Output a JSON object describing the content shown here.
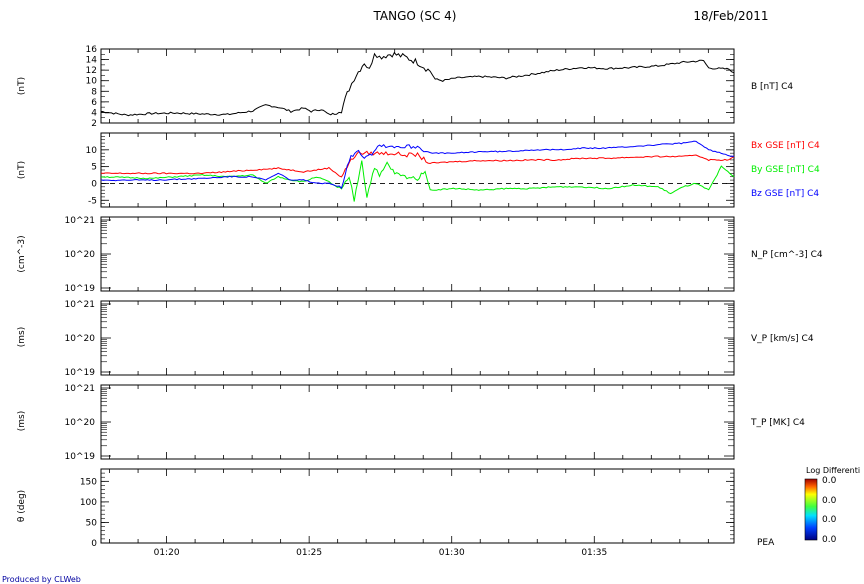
{
  "header": {
    "title": "TANGO (SC 4)",
    "date": "18/Feb/2011"
  },
  "footer": {
    "credit": "Produced by CLWeb"
  },
  "colorbar": {
    "title": "Log Differenti",
    "labels": [
      "0.0",
      "0.0",
      "0.0",
      "0.0"
    ],
    "side_label": "PEA"
  },
  "colors": {
    "bx": "#ff0000",
    "by": "#00ee00",
    "bz": "#0000ff",
    "b": "#000000"
  },
  "chart_data": [
    {
      "type": "line",
      "ylabel": "(nT)",
      "right_label": "B [nT] C4",
      "ylim": [
        2,
        16
      ],
      "yticks": [
        "2",
        "4",
        "6",
        "8",
        "10",
        "12",
        "14",
        "16"
      ],
      "x_ticks": [
        "01:20",
        "01:25",
        "01:30",
        "01:35"
      ],
      "series": [
        {
          "name": "B [nT] C4",
          "color": "#000000",
          "points": [
            [
              0,
              4.2
            ],
            [
              1,
              3.5
            ],
            [
              2,
              3.8
            ],
            [
              3,
              3.9
            ],
            [
              4,
              3.7
            ],
            [
              5,
              3.6
            ],
            [
              6,
              4.3
            ],
            [
              6.5,
              5.4
            ],
            [
              7,
              5.0
            ],
            [
              7.5,
              4.2
            ],
            [
              8,
              4.8
            ],
            [
              8.3,
              4.2
            ],
            [
              8.7,
              4.6
            ],
            [
              9,
              3.6
            ],
            [
              9.3,
              3.8
            ],
            [
              9.5,
              4.5
            ],
            [
              9.8,
              8.5
            ],
            [
              10,
              10.5
            ],
            [
              10.4,
              13.5
            ],
            [
              10.6,
              12
            ],
            [
              10.8,
              15.5
            ],
            [
              11,
              14.5
            ],
            [
              11.5,
              15.1
            ],
            [
              12,
              14.5
            ],
            [
              12.5,
              13.5
            ],
            [
              13,
              11.8
            ],
            [
              13.2,
              10.3
            ],
            [
              13.5,
              10
            ],
            [
              14,
              10.5
            ],
            [
              15,
              10.8
            ],
            [
              16,
              10.5
            ],
            [
              17,
              11.2
            ],
            [
              18,
              12
            ],
            [
              19,
              12.5
            ],
            [
              20,
              12.3
            ],
            [
              21,
              12.5
            ],
            [
              22,
              12.8
            ],
            [
              23,
              13.5
            ],
            [
              23.8,
              13.8
            ],
            [
              24,
              12.4
            ],
            [
              24.8,
              12.2
            ],
            [
              25,
              11.5
            ]
          ]
        }
      ]
    },
    {
      "type": "line",
      "ylabel": "(nT)",
      "ylim": [
        -7,
        15
      ],
      "yticks": [
        "-5",
        "0",
        "5",
        "10"
      ],
      "zero_line": true,
      "series": [
        {
          "name": "Bx GSE [nT] C4",
          "color": "#ff0000",
          "points": [
            [
              0,
              3
            ],
            [
              2,
              3
            ],
            [
              4,
              3
            ],
            [
              6,
              4
            ],
            [
              7,
              4.5
            ],
            [
              8,
              3.5
            ],
            [
              8.5,
              4
            ],
            [
              9,
              4.6
            ],
            [
              9.5,
              2
            ],
            [
              9.8,
              6
            ],
            [
              10.1,
              9
            ],
            [
              10.5,
              9
            ],
            [
              11,
              9
            ],
            [
              11.5,
              9
            ],
            [
              12,
              8.5
            ],
            [
              12.5,
              8.5
            ],
            [
              13,
              6
            ],
            [
              14,
              6.5
            ],
            [
              15,
              6.8
            ],
            [
              16,
              6.8
            ],
            [
              17,
              7
            ],
            [
              18,
              7
            ],
            [
              19,
              7.5
            ],
            [
              20,
              7.5
            ],
            [
              21,
              7.8
            ],
            [
              22,
              8
            ],
            [
              23,
              8
            ],
            [
              23.5,
              8.5
            ],
            [
              24,
              7
            ],
            [
              24.8,
              7
            ],
            [
              25,
              8
            ]
          ]
        },
        {
          "name": "By GSE [nT] C4",
          "color": "#00ee00",
          "points": [
            [
              0,
              2
            ],
            [
              2,
              1.5
            ],
            [
              4,
              2.5
            ],
            [
              5,
              2
            ],
            [
              6,
              2.5
            ],
            [
              6.5,
              0
            ],
            [
              7,
              2
            ],
            [
              7.5,
              1
            ],
            [
              8,
              0.5
            ],
            [
              8.5,
              2
            ],
            [
              9,
              0.5
            ],
            [
              9.5,
              -2
            ],
            [
              9.8,
              2
            ],
            [
              10,
              -5
            ],
            [
              10.3,
              7
            ],
            [
              10.5,
              -4
            ],
            [
              10.8,
              5
            ],
            [
              11,
              2
            ],
            [
              11.3,
              6
            ],
            [
              11.6,
              3
            ],
            [
              12,
              2
            ],
            [
              12.5,
              1.5
            ],
            [
              12.8,
              4
            ],
            [
              13,
              -2
            ],
            [
              14,
              -1.5
            ],
            [
              15,
              -2
            ],
            [
              16,
              -1.5
            ],
            [
              17,
              -1.5
            ],
            [
              18,
              -1
            ],
            [
              19,
              -1
            ],
            [
              20,
              -1.5
            ],
            [
              21,
              -0.5
            ],
            [
              22,
              -1
            ],
            [
              22.5,
              -3
            ],
            [
              23,
              -1
            ],
            [
              23.5,
              0
            ],
            [
              24,
              -2
            ],
            [
              24.5,
              5
            ],
            [
              25,
              2
            ]
          ]
        },
        {
          "name": "Bz GSE [nT] C4",
          "color": "#0000ff",
          "points": [
            [
              0,
              1
            ],
            [
              2,
              1
            ],
            [
              4,
              1.5
            ],
            [
              5,
              2
            ],
            [
              6,
              2
            ],
            [
              6.5,
              1
            ],
            [
              7,
              3
            ],
            [
              7.5,
              1
            ],
            [
              8,
              1
            ],
            [
              8.5,
              0
            ],
            [
              9,
              0
            ],
            [
              9.5,
              -1
            ],
            [
              9.8,
              7
            ],
            [
              10.1,
              10
            ],
            [
              10.4,
              8
            ],
            [
              10.7,
              9
            ],
            [
              11,
              11.5
            ],
            [
              11.5,
              11
            ],
            [
              12,
              11
            ],
            [
              12.5,
              11
            ],
            [
              13,
              9
            ],
            [
              14,
              9
            ],
            [
              15,
              9.5
            ],
            [
              16,
              9.5
            ],
            [
              17,
              10
            ],
            [
              18,
              10
            ],
            [
              19,
              10.5
            ],
            [
              20,
              10.5
            ],
            [
              21,
              11
            ],
            [
              22,
              11.5
            ],
            [
              23,
              12
            ],
            [
              23.5,
              12.5
            ],
            [
              24,
              10
            ],
            [
              24.5,
              9
            ],
            [
              25,
              8
            ]
          ]
        }
      ]
    },
    {
      "type": "line",
      "ylabel": "(cm^-3)",
      "right_label": "N_P [cm^-3] C4",
      "ylim_labels": [
        "10^21",
        "10^20",
        "10^19"
      ],
      "series": []
    },
    {
      "type": "line",
      "ylabel": "(ms)",
      "right_label": "V_P [km/s] C4",
      "ylim_labels": [
        "10^21",
        "10^20",
        "10^19"
      ],
      "series": []
    },
    {
      "type": "line",
      "ylabel": "(ms)",
      "right_label": "T_P [MK] C4",
      "ylim_labels": [
        "10^21",
        "10^20",
        "10^19"
      ],
      "series": []
    },
    {
      "type": "heatmap",
      "ylabel": "θ (deg)",
      "ylim": [
        0,
        180
      ],
      "yticks": [
        "0",
        "50",
        "100",
        "150"
      ],
      "values": []
    }
  ]
}
